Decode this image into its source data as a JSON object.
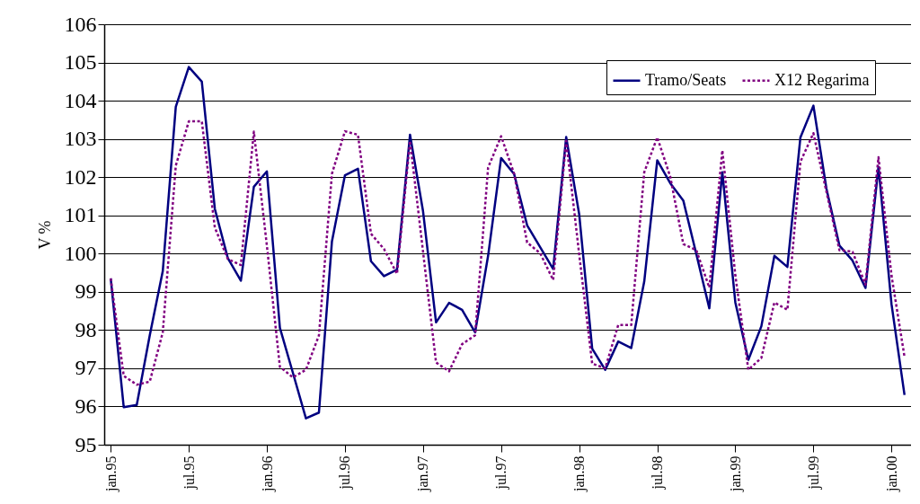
{
  "chart_data": {
    "type": "line",
    "ylabel": "V %",
    "categories": [
      "jan.95",
      null,
      null,
      null,
      null,
      null,
      "jul.95",
      null,
      null,
      null,
      null,
      null,
      "jan.96",
      null,
      null,
      null,
      null,
      null,
      "jul.96",
      null,
      null,
      null,
      null,
      null,
      "jan.97",
      null,
      null,
      null,
      null,
      null,
      "jul.97",
      null,
      null,
      null,
      null,
      null,
      "jan.98",
      null,
      null,
      null,
      null,
      null,
      "jul.98",
      null,
      null,
      null,
      null,
      null,
      "jan.99",
      null,
      null,
      null,
      null,
      null,
      "jul.99",
      null,
      null,
      null,
      null,
      null,
      "jan.00",
      null
    ],
    "series": [
      {
        "name": "Tramo/Seats",
        "color": "#000080",
        "line_style": "solid",
        "values": [
          99.35,
          95.98,
          96.04,
          97.86,
          99.54,
          103.84,
          104.88,
          104.5,
          101.17,
          99.88,
          99.29,
          101.75,
          102.15,
          98.06,
          96.88,
          95.69,
          95.84,
          100.32,
          102.05,
          102.22,
          99.8,
          99.41,
          99.58,
          103.11,
          101.11,
          98.2,
          98.71,
          98.53,
          97.94,
          99.94,
          102.5,
          102.08,
          100.74,
          100.17,
          99.6,
          103.05,
          101.03,
          97.51,
          96.96,
          97.7,
          97.53,
          99.27,
          102.44,
          101.84,
          101.39,
          99.99,
          98.57,
          102.13,
          98.72,
          97.22,
          98.1,
          99.94,
          99.65,
          103.04,
          103.87,
          101.7,
          100.21,
          99.82,
          99.1,
          102.27,
          98.68,
          96.3
        ]
      },
      {
        "name": "X12 Regarima",
        "color": "#800080",
        "line_style": "dotted",
        "values": [
          99.35,
          96.8,
          96.57,
          96.65,
          97.94,
          102.3,
          103.46,
          103.46,
          100.68,
          99.86,
          99.7,
          103.19,
          100.21,
          97.04,
          96.76,
          96.96,
          97.86,
          102.09,
          103.2,
          103.11,
          100.52,
          100.12,
          99.47,
          102.95,
          100.05,
          97.15,
          96.92,
          97.63,
          97.86,
          102.25,
          103.07,
          102.09,
          100.29,
          100.01,
          99.31,
          102.95,
          99.98,
          97.12,
          97.0,
          98.13,
          98.13,
          102.13,
          103.04,
          102.01,
          100.25,
          100.09,
          99.11,
          102.7,
          99.43,
          96.96,
          97.27,
          98.72,
          98.53,
          102.4,
          103.15,
          101.62,
          100.09,
          100.05,
          99.19,
          102.52,
          99.43,
          97.3
        ]
      }
    ],
    "ylim": [
      95,
      106
    ],
    "yticks": [
      95,
      96,
      97,
      98,
      99,
      100,
      101,
      102,
      103,
      104,
      105,
      106
    ],
    "grid": "y",
    "legend": "top right"
  }
}
